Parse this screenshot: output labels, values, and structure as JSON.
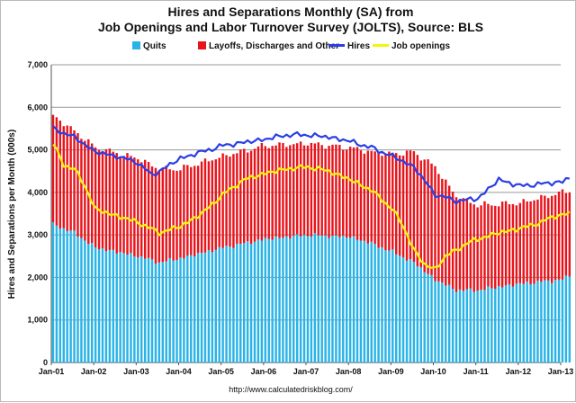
{
  "chart_data": {
    "type": "bar",
    "title_line1": "Hires and Separations Monthly (SA) from",
    "title_line2": "Job Openings and Labor Turnover Survey (JOLTS), Source: BLS",
    "ylabel": "Hires and Separations per Month (000s)",
    "source": "http://www.calculatedriskblog.com/",
    "ylim": [
      0,
      7000
    ],
    "y_ticks": [
      "0",
      "1,000",
      "2,000",
      "3,000",
      "4,000",
      "5,000",
      "6,000",
      "7,000"
    ],
    "x_ticks": [
      "Jan-01",
      "Jan-02",
      "Jan-03",
      "Jan-04",
      "Jan-05",
      "Jan-06",
      "Jan-07",
      "Jan-08",
      "Jan-09",
      "Jan-10",
      "Jan-11",
      "Jan-12",
      "Jan-13"
    ],
    "legend": {
      "quits": "Quits",
      "layoffs": "Layoffs, Discharges and Other",
      "hires": "Hires",
      "openings": "Job openings"
    },
    "colors": {
      "quits": "#29b3e6",
      "layoffs": "#e8141c",
      "hires": "#2b3ee6",
      "openings": "#f5f50a",
      "grid": "#9a9a9a"
    },
    "anchors": {
      "quits": [
        [
          0,
          3250
        ],
        [
          6,
          3050
        ],
        [
          12,
          2700
        ],
        [
          24,
          2500
        ],
        [
          30,
          2350
        ],
        [
          36,
          2450
        ],
        [
          48,
          2700
        ],
        [
          60,
          2900
        ],
        [
          72,
          3000
        ],
        [
          84,
          2950
        ],
        [
          90,
          2800
        ],
        [
          96,
          2600
        ],
        [
          102,
          2350
        ],
        [
          108,
          1950
        ],
        [
          114,
          1700
        ],
        [
          120,
          1700
        ],
        [
          132,
          1850
        ],
        [
          144,
          1950
        ],
        [
          146,
          2050
        ]
      ],
      "layoffs": [
        [
          0,
          2550
        ],
        [
          6,
          2400
        ],
        [
          12,
          2350
        ],
        [
          24,
          2300
        ],
        [
          36,
          2100
        ],
        [
          48,
          2150
        ],
        [
          60,
          2200
        ],
        [
          72,
          2150
        ],
        [
          84,
          2100
        ],
        [
          90,
          2150
        ],
        [
          96,
          2300
        ],
        [
          102,
          2600
        ],
        [
          108,
          2650
        ],
        [
          114,
          2200
        ],
        [
          120,
          2000
        ],
        [
          132,
          1900
        ],
        [
          144,
          2050
        ],
        [
          146,
          2000
        ]
      ],
      "hires": [
        [
          0,
          5500
        ],
        [
          6,
          5300
        ],
        [
          12,
          4950
        ],
        [
          18,
          4850
        ],
        [
          24,
          4700
        ],
        [
          28,
          4400
        ],
        [
          36,
          4800
        ],
        [
          48,
          5100
        ],
        [
          60,
          5250
        ],
        [
          66,
          5350
        ],
        [
          72,
          5350
        ],
        [
          78,
          5300
        ],
        [
          84,
          5200
        ],
        [
          90,
          5050
        ],
        [
          96,
          4850
        ],
        [
          102,
          4600
        ],
        [
          108,
          3950
        ],
        [
          114,
          3800
        ],
        [
          120,
          3850
        ],
        [
          126,
          4300
        ],
        [
          132,
          4150
        ],
        [
          138,
          4200
        ],
        [
          144,
          4250
        ],
        [
          146,
          4350
        ]
      ],
      "openings": [
        [
          0,
          5150
        ],
        [
          3,
          4650
        ],
        [
          6,
          4550
        ],
        [
          9,
          4150
        ],
        [
          12,
          3600
        ],
        [
          18,
          3450
        ],
        [
          24,
          3300
        ],
        [
          30,
          3050
        ],
        [
          36,
          3200
        ],
        [
          42,
          3500
        ],
        [
          48,
          3950
        ],
        [
          54,
          4300
        ],
        [
          60,
          4450
        ],
        [
          66,
          4550
        ],
        [
          72,
          4600
        ],
        [
          78,
          4500
        ],
        [
          84,
          4300
        ],
        [
          90,
          4050
        ],
        [
          96,
          3600
        ],
        [
          99,
          3200
        ],
        [
          102,
          2650
        ],
        [
          105,
          2300
        ],
        [
          108,
          2200
        ],
        [
          111,
          2500
        ],
        [
          114,
          2650
        ],
        [
          117,
          2800
        ],
        [
          120,
          2900
        ],
        [
          126,
          3050
        ],
        [
          132,
          3150
        ],
        [
          138,
          3300
        ],
        [
          142,
          3450
        ],
        [
          146,
          3500
        ]
      ]
    }
  }
}
